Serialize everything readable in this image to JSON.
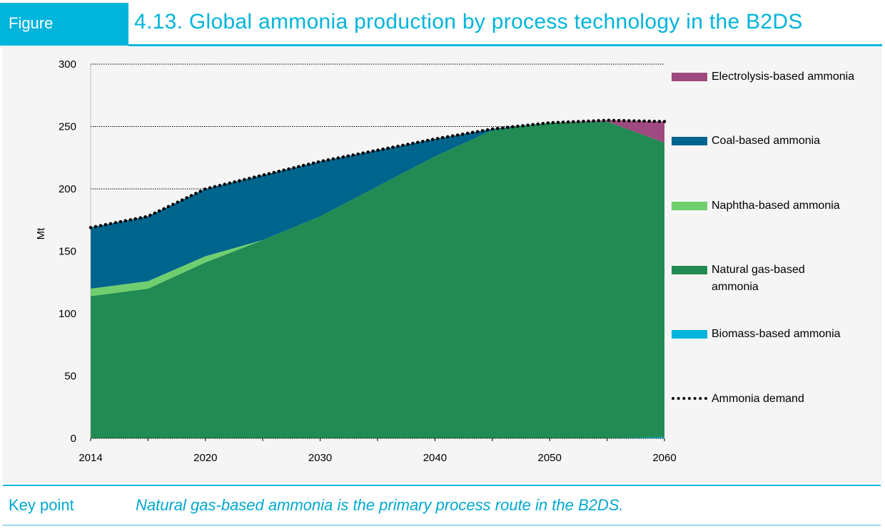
{
  "header": {
    "figure_label": "Figure",
    "title": "4.13.  Global ammonia production by process technology in the B2DS"
  },
  "key_point": {
    "label": "Key point",
    "text": "Natural gas-based ammonia is the primary process route in the B2DS."
  },
  "chart_data": {
    "type": "area",
    "stacked": true,
    "ylabel": "Mt",
    "xlabel": "",
    "ylim": [
      0,
      300
    ],
    "yticks": [
      0,
      50,
      100,
      150,
      200,
      250,
      300
    ],
    "grid": "horizontal dotted",
    "legend_position": "right",
    "categories": [
      2014,
      2015,
      2020,
      2025,
      2030,
      2035,
      2040,
      2045,
      2050,
      2055,
      2060
    ],
    "xtick_labels": [
      "2014",
      "2020",
      "2030",
      "2040",
      "2050",
      "2060"
    ],
    "series": [
      {
        "name": "Biomass-based ammonia",
        "color": "#00b4dc",
        "values": [
          0,
          0,
          0,
          0,
          0,
          0,
          0,
          0,
          0,
          0,
          1
        ]
      },
      {
        "name": "Natural gas-based ammonia",
        "color": "#218b53",
        "values": [
          114,
          120,
          141,
          159,
          178,
          202,
          226,
          247,
          253,
          254,
          236
        ]
      },
      {
        "name": "Naphtha-based ammonia",
        "color": "#6fcf6f",
        "values": [
          6,
          6,
          5,
          0,
          0,
          0,
          0,
          0,
          0,
          0,
          0
        ]
      },
      {
        "name": "Coal-based ammonia",
        "color": "#00658c",
        "values": [
          49,
          52,
          54,
          52,
          44,
          29,
          14,
          1,
          0,
          0,
          0
        ]
      },
      {
        "name": "Electrolysis-based ammonia",
        "color": "#9e4a80",
        "values": [
          0,
          0,
          0,
          0,
          0,
          0,
          0,
          0,
          0,
          1,
          17
        ]
      }
    ],
    "line": {
      "name": "Ammonia demand",
      "style": "dotted",
      "color": "#000000",
      "values": [
        169,
        178,
        200,
        211,
        222,
        231,
        240,
        248,
        253,
        255,
        254
      ]
    },
    "legend_order": [
      "Electrolysis-based ammonia",
      "Coal-based ammonia",
      "Naphtha-based ammonia",
      "Natural gas-based\nammonia",
      "Biomass-based ammonia",
      "Ammonia demand"
    ]
  }
}
